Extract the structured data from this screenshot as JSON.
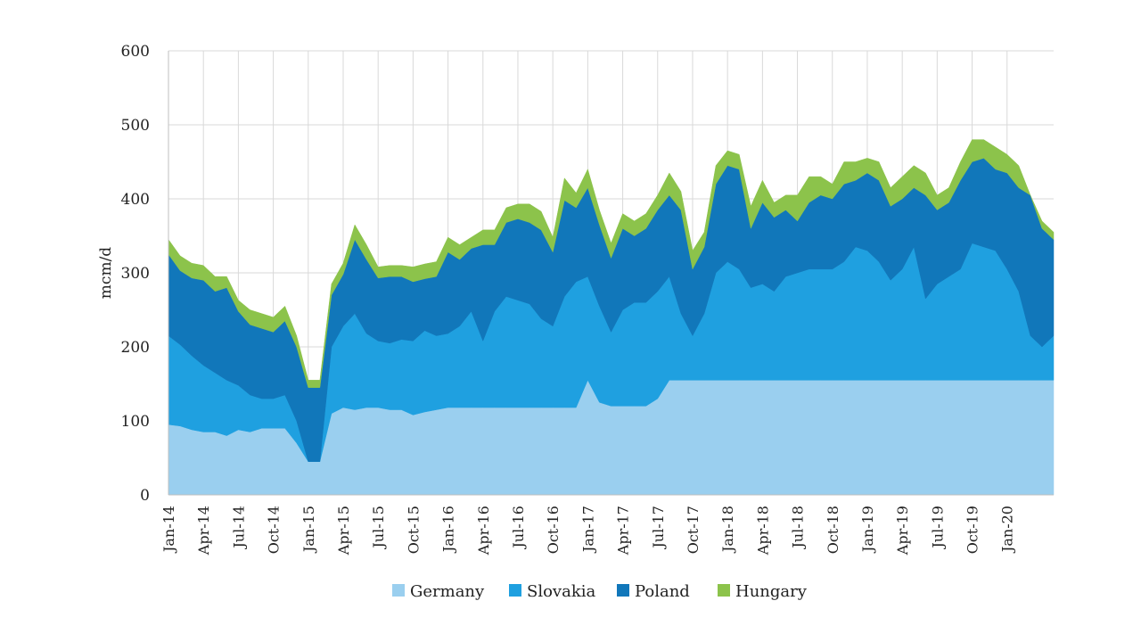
{
  "chart_data": {
    "type": "area",
    "stacked": true,
    "title": "",
    "xlabel": "",
    "ylabel": "mcm/d",
    "ylim": [
      0,
      600
    ],
    "yticks": [
      0,
      100,
      200,
      300,
      400,
      500,
      600
    ],
    "x_range_months": [
      0,
      76
    ],
    "grid": true,
    "legend_position": "bottom",
    "x_tick_labels": [
      "Jan-14",
      "Apr-14",
      "Jul-14",
      "Oct-14",
      "Jan-15",
      "Apr-15",
      "Jul-15",
      "Oct-15",
      "Jan-16",
      "Apr-16",
      "Jul-16",
      "Oct-16",
      "Jan-17",
      "Apr-17",
      "Jul-17",
      "Oct-17",
      "Jan-18",
      "Apr-18",
      "Jul-18",
      "Oct-18",
      "Jan-19",
      "Apr-19",
      "Jul-19",
      "Oct-19",
      "Jan-20"
    ],
    "x_months": [
      0,
      1,
      2,
      3,
      4,
      5,
      6,
      7,
      8,
      9,
      10,
      11,
      12,
      13,
      14,
      15,
      16,
      17,
      18,
      19,
      20,
      21,
      22,
      23,
      24,
      25,
      26,
      27,
      28,
      29,
      30,
      31,
      32,
      33,
      34,
      35,
      36,
      37,
      38,
      39,
      40,
      41,
      42,
      43,
      44,
      45,
      46,
      47,
      48,
      49,
      50,
      51,
      52,
      53,
      54,
      55,
      56,
      57,
      58,
      59,
      60,
      61,
      62,
      63,
      64,
      65,
      66,
      67,
      68,
      69,
      70,
      71,
      72,
      73,
      74,
      75,
      76
    ],
    "series": [
      {
        "name": "Germany",
        "color": "#9ACFEF",
        "values": [
          95,
          93,
          88,
          85,
          85,
          80,
          88,
          85,
          90,
          90,
          90,
          70,
          45,
          45,
          110,
          118,
          115,
          118,
          118,
          115,
          115,
          108,
          112,
          115,
          118,
          118,
          118,
          118,
          118,
          118,
          118,
          118,
          118,
          118,
          118,
          118,
          155,
          125,
          120,
          120,
          120,
          120,
          130,
          155,
          155,
          155,
          155,
          155,
          155,
          155,
          155,
          155,
          155,
          155,
          155,
          155,
          155,
          155,
          155,
          155,
          155,
          155,
          155,
          155,
          155,
          155,
          155,
          155,
          155,
          155,
          155,
          155,
          155,
          155,
          155,
          155,
          155
        ]
      },
      {
        "name": "Slovakia",
        "color": "#1FA0E0",
        "values": [
          120,
          110,
          100,
          90,
          80,
          75,
          60,
          50,
          40,
          40,
          45,
          30,
          0,
          0,
          90,
          110,
          130,
          100,
          90,
          90,
          95,
          100,
          110,
          100,
          100,
          110,
          130,
          90,
          130,
          150,
          145,
          140,
          120,
          110,
          150,
          170,
          140,
          130,
          100,
          130,
          140,
          140,
          145,
          140,
          90,
          60,
          90,
          145,
          160,
          150,
          125,
          130,
          120,
          140,
          145,
          150,
          150,
          150,
          160,
          180,
          175,
          160,
          135,
          150,
          180,
          110,
          130,
          140,
          150,
          185,
          180,
          175,
          150,
          120,
          60,
          45,
          60
        ]
      },
      {
        "name": "Poland",
        "color": "#1177BA",
        "values": [
          110,
          100,
          105,
          115,
          110,
          125,
          100,
          95,
          95,
          90,
          100,
          100,
          100,
          100,
          70,
          70,
          100,
          100,
          85,
          90,
          85,
          80,
          70,
          80,
          110,
          90,
          85,
          130,
          90,
          100,
          110,
          110,
          120,
          100,
          130,
          100,
          120,
          110,
          100,
          110,
          90,
          100,
          110,
          110,
          140,
          90,
          90,
          120,
          130,
          135,
          80,
          110,
          100,
          90,
          70,
          90,
          100,
          95,
          105,
          90,
          105,
          110,
          100,
          95,
          80,
          140,
          100,
          100,
          120,
          110,
          120,
          110,
          130,
          140,
          190,
          160,
          130
        ]
      },
      {
        "name": "Hungary",
        "color": "#8CC34B",
        "values": [
          20,
          20,
          20,
          20,
          20,
          15,
          15,
          20,
          20,
          20,
          20,
          15,
          10,
          10,
          15,
          15,
          20,
          20,
          15,
          15,
          15,
          20,
          20,
          20,
          20,
          20,
          15,
          20,
          20,
          20,
          20,
          25,
          25,
          20,
          30,
          20,
          25,
          20,
          20,
          20,
          20,
          20,
          20,
          30,
          25,
          25,
          20,
          25,
          20,
          20,
          30,
          30,
          20,
          20,
          35,
          35,
          25,
          20,
          30,
          25,
          20,
          25,
          25,
          30,
          30,
          30,
          20,
          20,
          25,
          30,
          25,
          30,
          25,
          30,
          0,
          10,
          10
        ]
      }
    ]
  }
}
